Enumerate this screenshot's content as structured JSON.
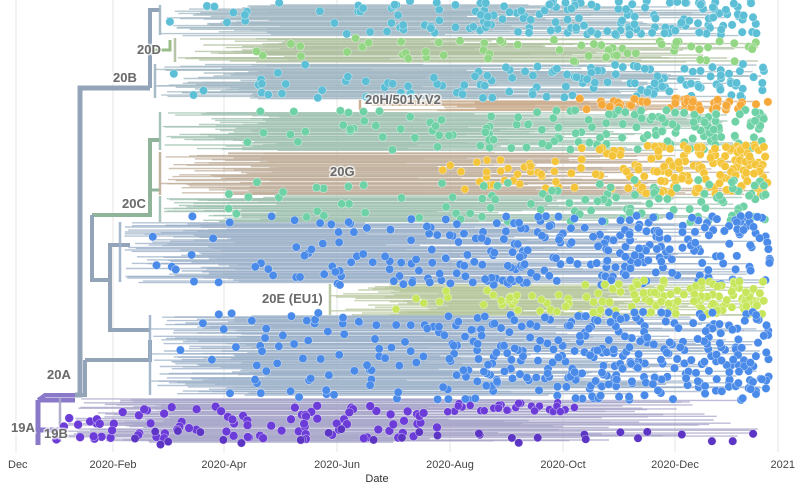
{
  "chart_data": {
    "type": "scatter",
    "xlabel": "Date",
    "x_ticks": [
      "Dec",
      "2020-Feb",
      "2020-Apr",
      "2020-Jun",
      "2020-Aug",
      "2020-Oct",
      "2020-Dec",
      "2021"
    ],
    "grid": true,
    "clades": [
      {
        "name": "20D",
        "color": "#93d684",
        "date_range": [
          "2020-02",
          "2020-12"
        ]
      },
      {
        "name": "20B",
        "color": "#5dbfd6",
        "date_range": [
          "2020-02",
          "2020-12"
        ]
      },
      {
        "name": "20H/501Y.V2",
        "color": "#f5a93a",
        "date_range": [
          "2020-10",
          "2020-12"
        ]
      },
      {
        "name": "20G",
        "color": "#f4c53a",
        "date_range": [
          "2020-09",
          "2020-12"
        ]
      },
      {
        "name": "20C",
        "color": "#6fd1a6",
        "date_range": [
          "2020-02",
          "2020-12"
        ]
      },
      {
        "name": "20E (EU1)",
        "color": "#c7e65c",
        "date_range": [
          "2020-07",
          "2020-12"
        ]
      },
      {
        "name": "20A",
        "color": "#4a8ae8",
        "date_range": [
          "2020-02",
          "2020-12"
        ]
      },
      {
        "name": "19A",
        "color": "#6c3cd8",
        "date_range": [
          "2019-12",
          "2020-12"
        ]
      },
      {
        "name": "19B",
        "color": "#5d35c4",
        "date_range": [
          "2019-12",
          "2020-12"
        ]
      }
    ],
    "branch_color": "#93a4b8"
  }
}
